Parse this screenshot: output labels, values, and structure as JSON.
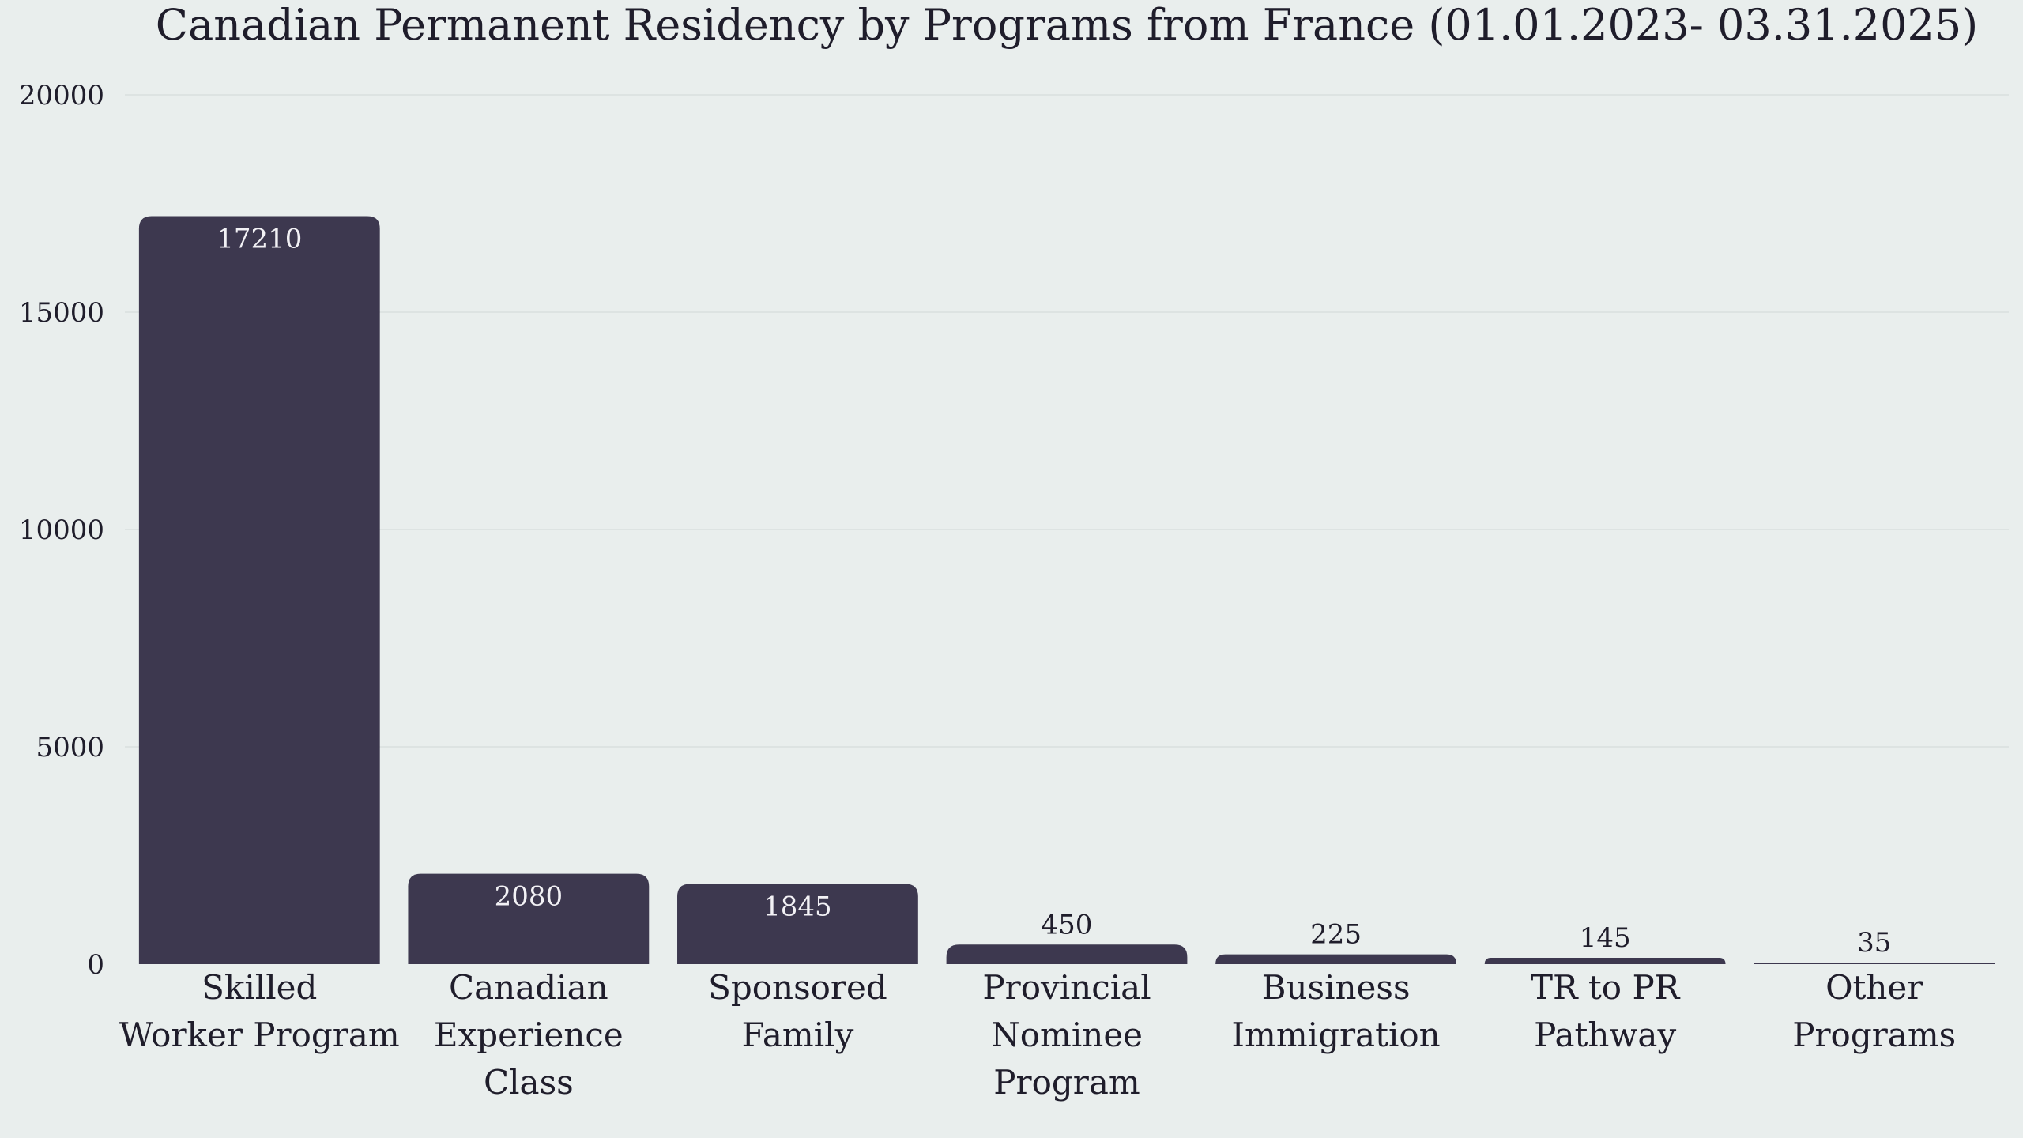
{
  "chart_data": {
    "type": "bar",
    "title": "Canadian Permanent Residency by Programs from France (01.01.2023- 03.31.2025)",
    "xlabel": "",
    "ylabel": "",
    "ylim": [
      0,
      20000
    ],
    "yticks": [
      0,
      5000,
      10000,
      15000,
      20000
    ],
    "grid": true,
    "categories": [
      [
        "Skilled",
        "Worker Program"
      ],
      [
        "Canadian",
        "Experience",
        "Class"
      ],
      [
        "Sponsored",
        "Family"
      ],
      [
        "Provincial",
        "Nominee",
        "Program"
      ],
      [
        "Business",
        "Immigration"
      ],
      [
        "TR to PR",
        "Pathway"
      ],
      [
        "Other",
        "Programs"
      ]
    ],
    "values": [
      17210,
      2080,
      1845,
      450,
      225,
      145,
      35
    ],
    "colors": {
      "bar": "#3d384f",
      "label_inside": "#f2f1f5",
      "label_outside": "#1f1d2b",
      "background": "#e9eeed",
      "grid": "#dde3e2"
    }
  }
}
